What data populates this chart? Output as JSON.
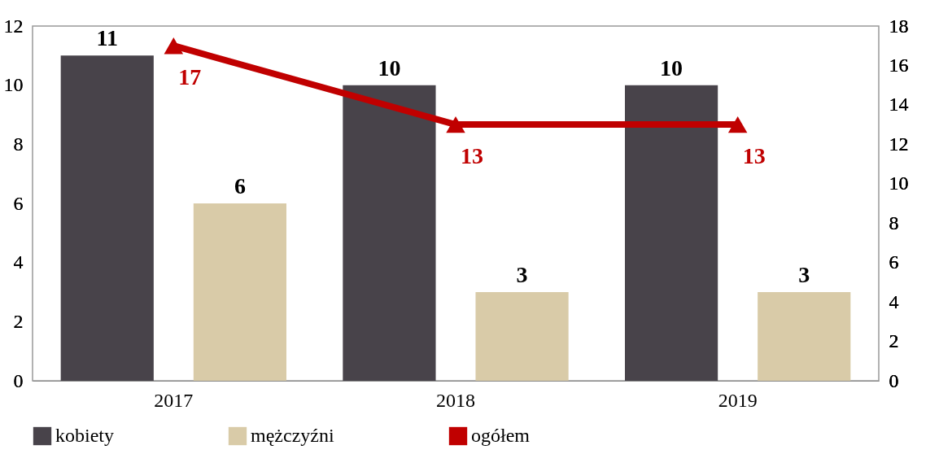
{
  "chart_data": {
    "type": "bar",
    "categories": [
      "2017",
      "2018",
      "2019"
    ],
    "series": [
      {
        "name": "kobiety",
        "color": "#48434a",
        "values": [
          11,
          10,
          10
        ]
      },
      {
        "name": "mężczyźni",
        "color": "#d9cba8",
        "values": [
          6,
          3,
          3
        ]
      },
      {
        "name": "ogółem",
        "color": "#c00000",
        "values": [
          17,
          13,
          13
        ],
        "type": "line",
        "axis": "y2"
      }
    ],
    "ylim": [
      0,
      12
    ],
    "yticks": [
      0,
      2,
      4,
      6,
      8,
      10,
      12
    ],
    "y2lim": [
      0,
      18
    ],
    "y2ticks": [
      0,
      2,
      4,
      6,
      8,
      10,
      12,
      14,
      16,
      18
    ],
    "data_labels": true,
    "legend": "bottom",
    "grid": false,
    "marker": "triangle",
    "line_style": "solid"
  }
}
